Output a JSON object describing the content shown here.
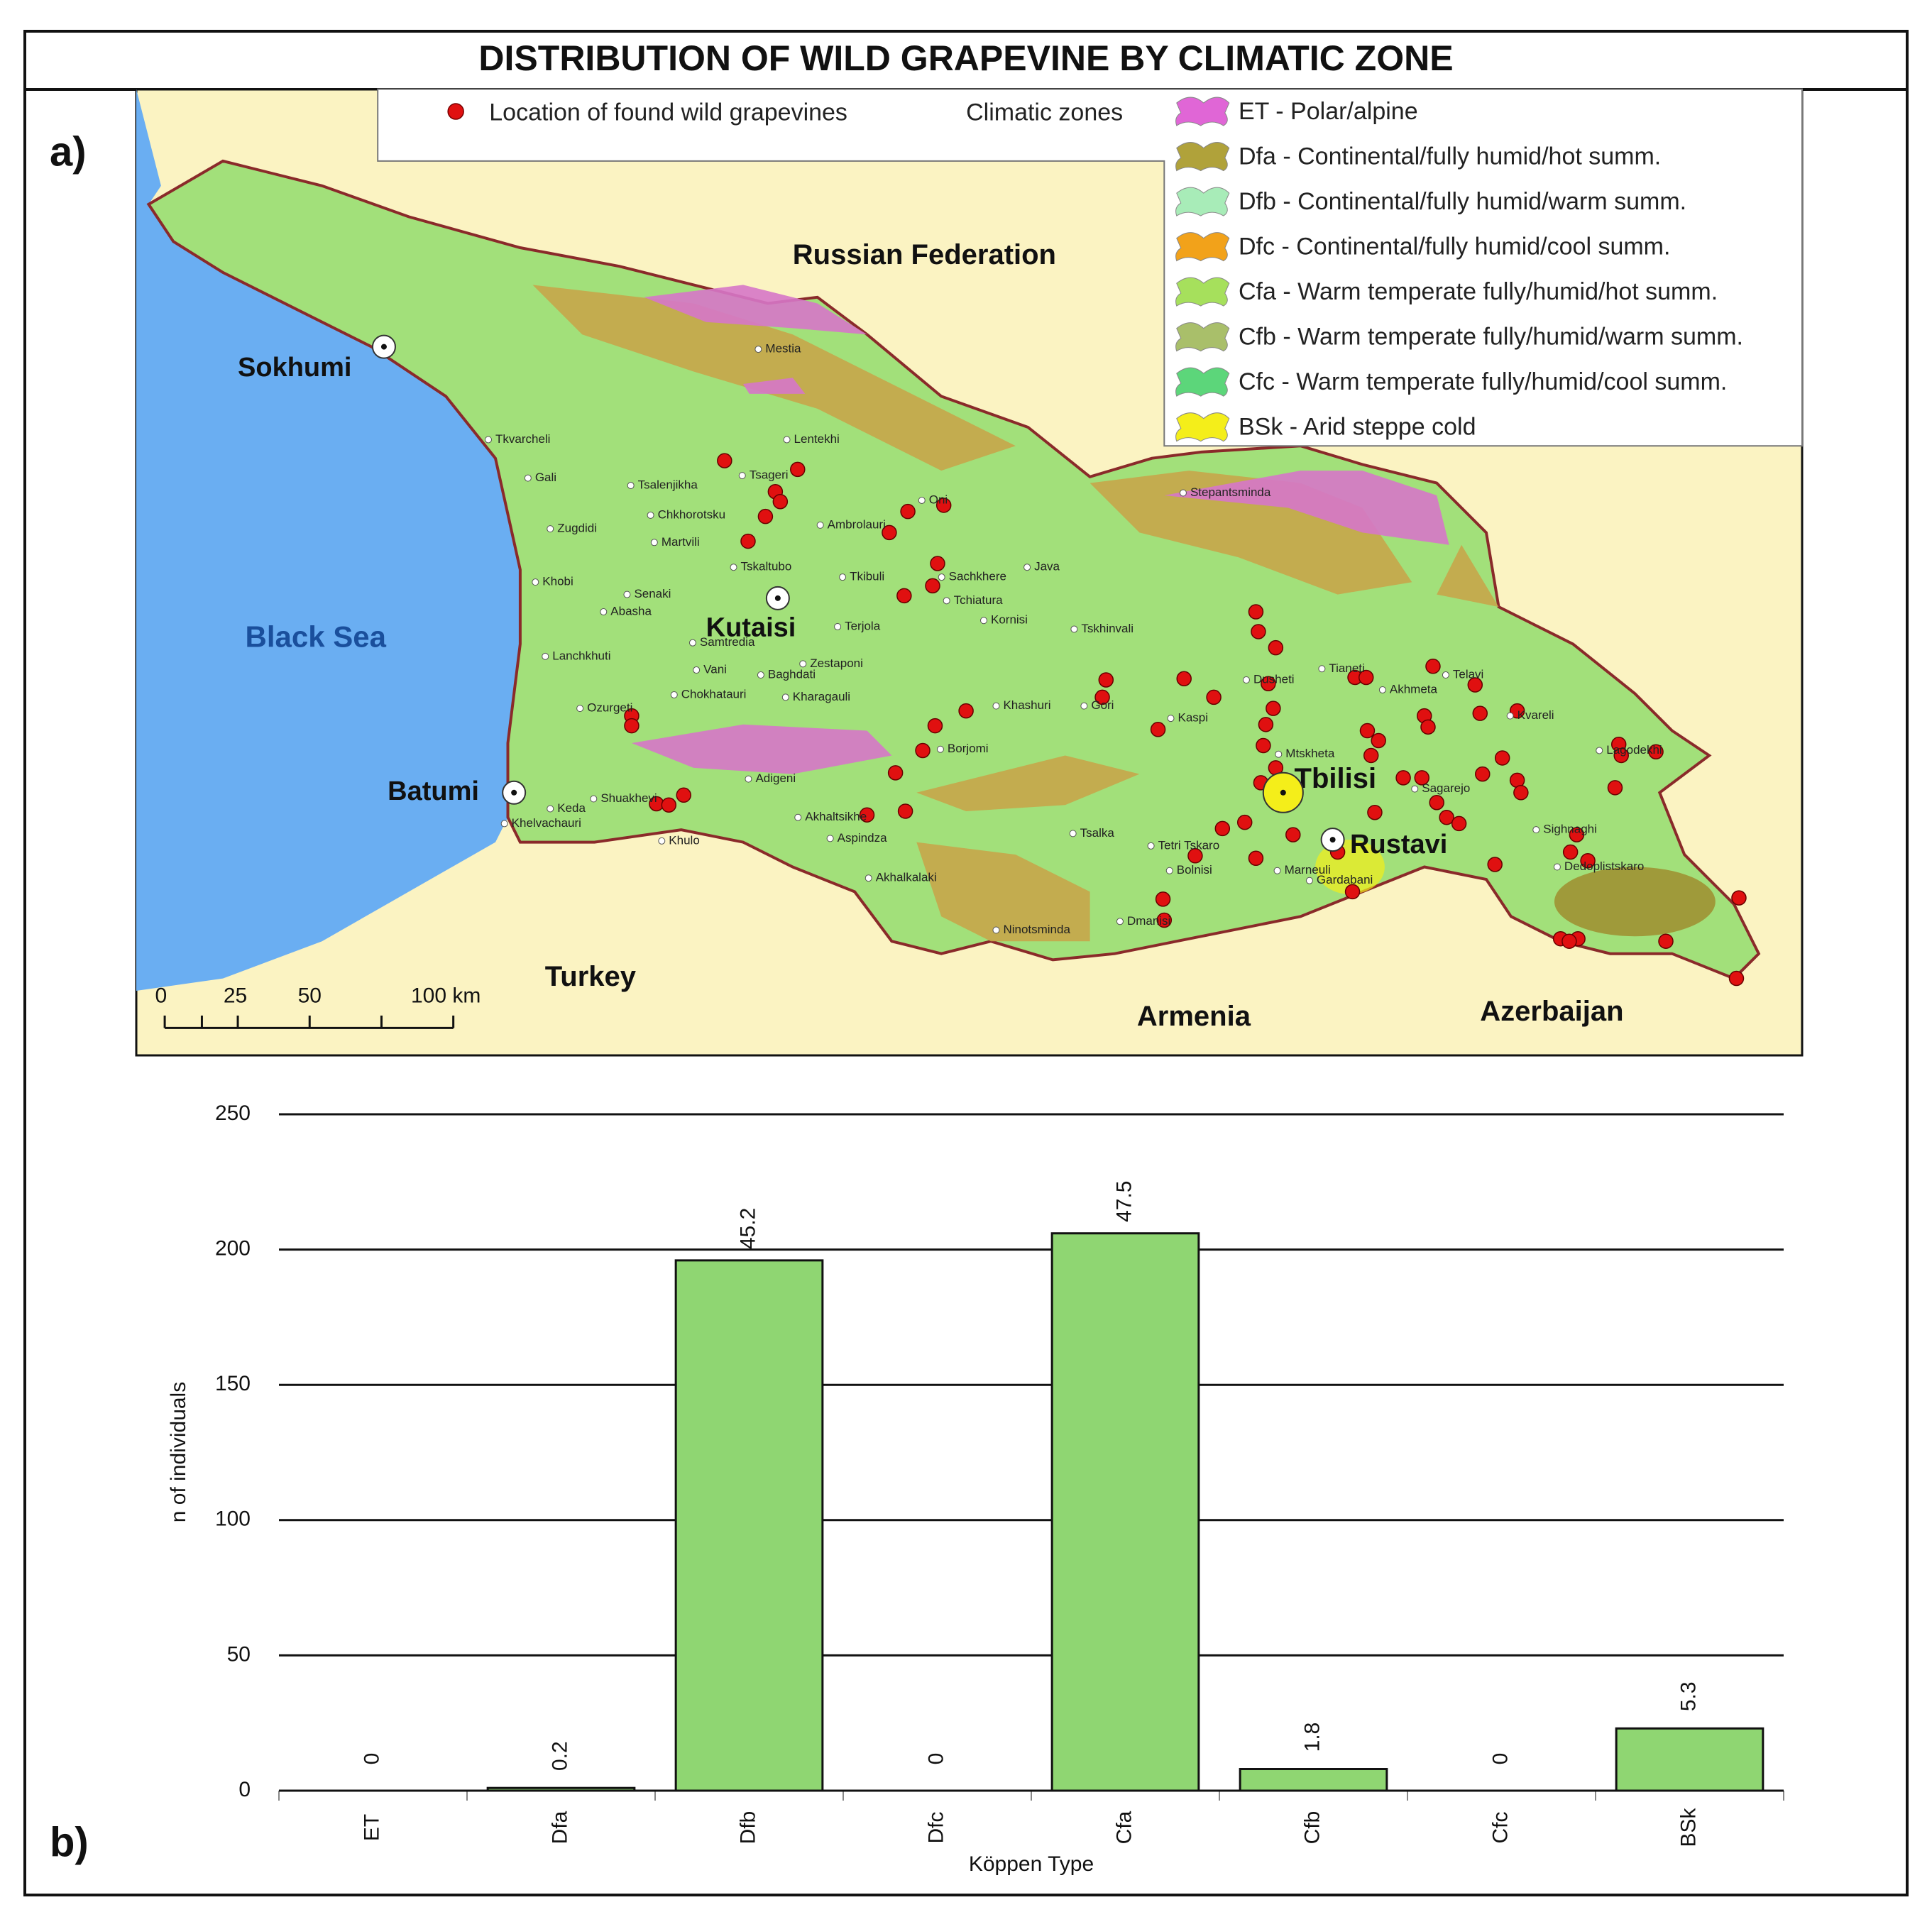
{
  "title": "DISTRIBUTION OF WILD GRAPEVINE BY CLIMATIC ZONE",
  "panel_a": {
    "label": "a)",
    "legend": {
      "points": "Location of found wild grapevines",
      "zones_title": "Climatic zones",
      "zones": [
        {
          "label": "ET - Polar/alpine",
          "color": "#e066d6"
        },
        {
          "label": "Dfa - Continental/fully humid/hot summ.",
          "color": "#b0a23a"
        },
        {
          "label": "Dfb - Continental/fully humid/warm summ.",
          "color": "#a8ecb8"
        },
        {
          "label": "Dfc - Continental/fully humid/cool summ.",
          "color": "#f2a21a"
        },
        {
          "label": "Cfa - Warm temperate fully/humid/hot summ.",
          "color": "#a6e05c"
        },
        {
          "label": "Cfb - Warm temperate fully/humid/warm summ.",
          "color": "#a9bf6a"
        },
        {
          "label": "Cfc - Warm temperate fully/humid/cool summ.",
          "color": "#5cd67a"
        },
        {
          "label": "BSk - Arid steppe cold",
          "color": "#f4ee1a"
        }
      ]
    },
    "major_places": [
      "Russian Federation",
      "Sokhumi",
      "Kutaisi",
      "Black Sea",
      "Batumi",
      "Tbilisi",
      "Rustavi",
      "Turkey",
      "Armenia",
      "Azerbaijan"
    ],
    "places": [
      "Mestia",
      "Lentekhi",
      "Tsageri",
      "Oni",
      "Ambrolauri",
      "Zugdidi",
      "Senaki",
      "Ozurgeti",
      "Zestaponi",
      "Borjomi",
      "Akhaltsikhe",
      "Gori",
      "Mtskheta",
      "Dusheti",
      "Telavi",
      "Kvareli",
      "Lagodekhi",
      "Sighnaghi",
      "Dedoplistskaro",
      "Gardabani",
      "Bolnisi",
      "Marneuli",
      "Tsalka",
      "Akhalkalaki",
      "Ninotsminda",
      "Stepantsminda",
      "Tianeti",
      "Akhmeta",
      "Sagarejo",
      "Kaspi",
      "Khashuri",
      "Tskhinvali",
      "Java",
      "Sachkhere",
      "Tchiatura",
      "Tkibuli",
      "Tskaltubo",
      "Martvili",
      "Chkhorotsku",
      "Tsalenjikha",
      "Gali",
      "Tkvarcheli",
      "Khobi",
      "Abasha",
      "Lanchkhuti",
      "Chokhatauri",
      "Baghdati",
      "Vani",
      "Samtredia",
      "Kharagauli",
      "Adigeni",
      "Aspindza",
      "Dmanisi",
      "Tetri Tskaro",
      "Keda",
      "Shuakhevi",
      "Khulo",
      "Khelvachauri",
      "Terjola",
      "Kornisi"
    ],
    "scale_labels": [
      "0",
      "25",
      "50",
      "100 km"
    ]
  },
  "panel_b_label": "b)",
  "chart_data": {
    "type": "bar",
    "categories": [
      "ET",
      "Dfa",
      "Dfb",
      "Dfc",
      "Cfa",
      "Cfb",
      "Cfc",
      "BSk"
    ],
    "values": [
      0,
      1,
      196,
      0,
      206,
      8,
      0,
      23
    ],
    "percentages": [
      0,
      0.2,
      45.2,
      0,
      47.5,
      1.8,
      0,
      5.3
    ],
    "color": "#8fd672",
    "ylabel": "n of individuals",
    "xlabel": "Köppen Type",
    "ylim": [
      0,
      250
    ],
    "yticks": [
      0,
      50,
      100,
      150,
      200,
      250
    ],
    "grid": true
  }
}
